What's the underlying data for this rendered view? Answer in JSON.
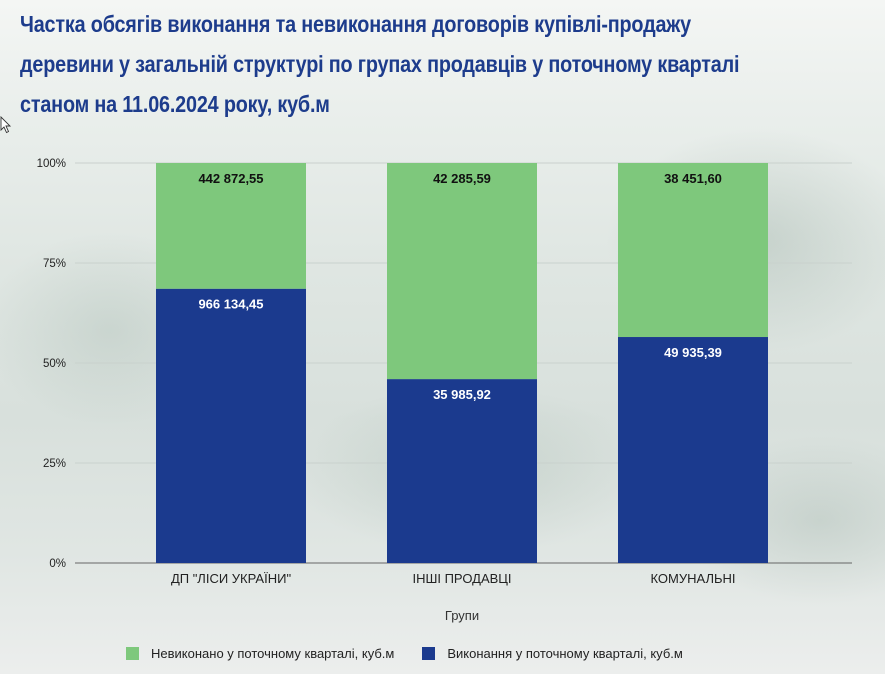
{
  "title": "Частка обсягів виконання та невиконання договорів купівлі-продажу деревини у загальній структурі по групах продавців у поточному кварталі станом на 11.06.2024 року, куб.м",
  "chart_data": {
    "type": "bar",
    "stacked": true,
    "normalized": true,
    "title": "Частка обсягів виконання та невиконання договорів купівлі-продажу деревини у загальній структурі по групах продавців у поточному кварталі станом на 11.06.2024 року, куб.м",
    "xlabel": "Групи",
    "ylabel": "",
    "ylim": [
      0,
      100
    ],
    "yticks": [
      "0%",
      "25%",
      "50%",
      "75%",
      "100%"
    ],
    "categories": [
      "ДП \"ЛІСИ УКРАЇНИ\"",
      "ІНШІ ПРОДАВЦІ",
      "КОМУНАЛЬНІ"
    ],
    "series": [
      {
        "name": "Виконання у поточному кварталі, куб.м",
        "color": "#1b3a8e",
        "label_color": "#ffffff",
        "values": [
          966134.45,
          35985.92,
          49935.39
        ],
        "labels": [
          "966 134,45",
          "35 985,92",
          "49 935,39"
        ]
      },
      {
        "name": "Невиконано у поточному кварталі, куб.м",
        "color": "#7ec87c",
        "label_color": "#111111",
        "values": [
          442872.55,
          42285.59,
          38451.6
        ],
        "labels": [
          "442 872,55",
          "42 285,59",
          "38 451,60"
        ]
      }
    ],
    "legend": {
      "placement": "bottom",
      "order": [
        1,
        0
      ]
    },
    "grid": true
  }
}
